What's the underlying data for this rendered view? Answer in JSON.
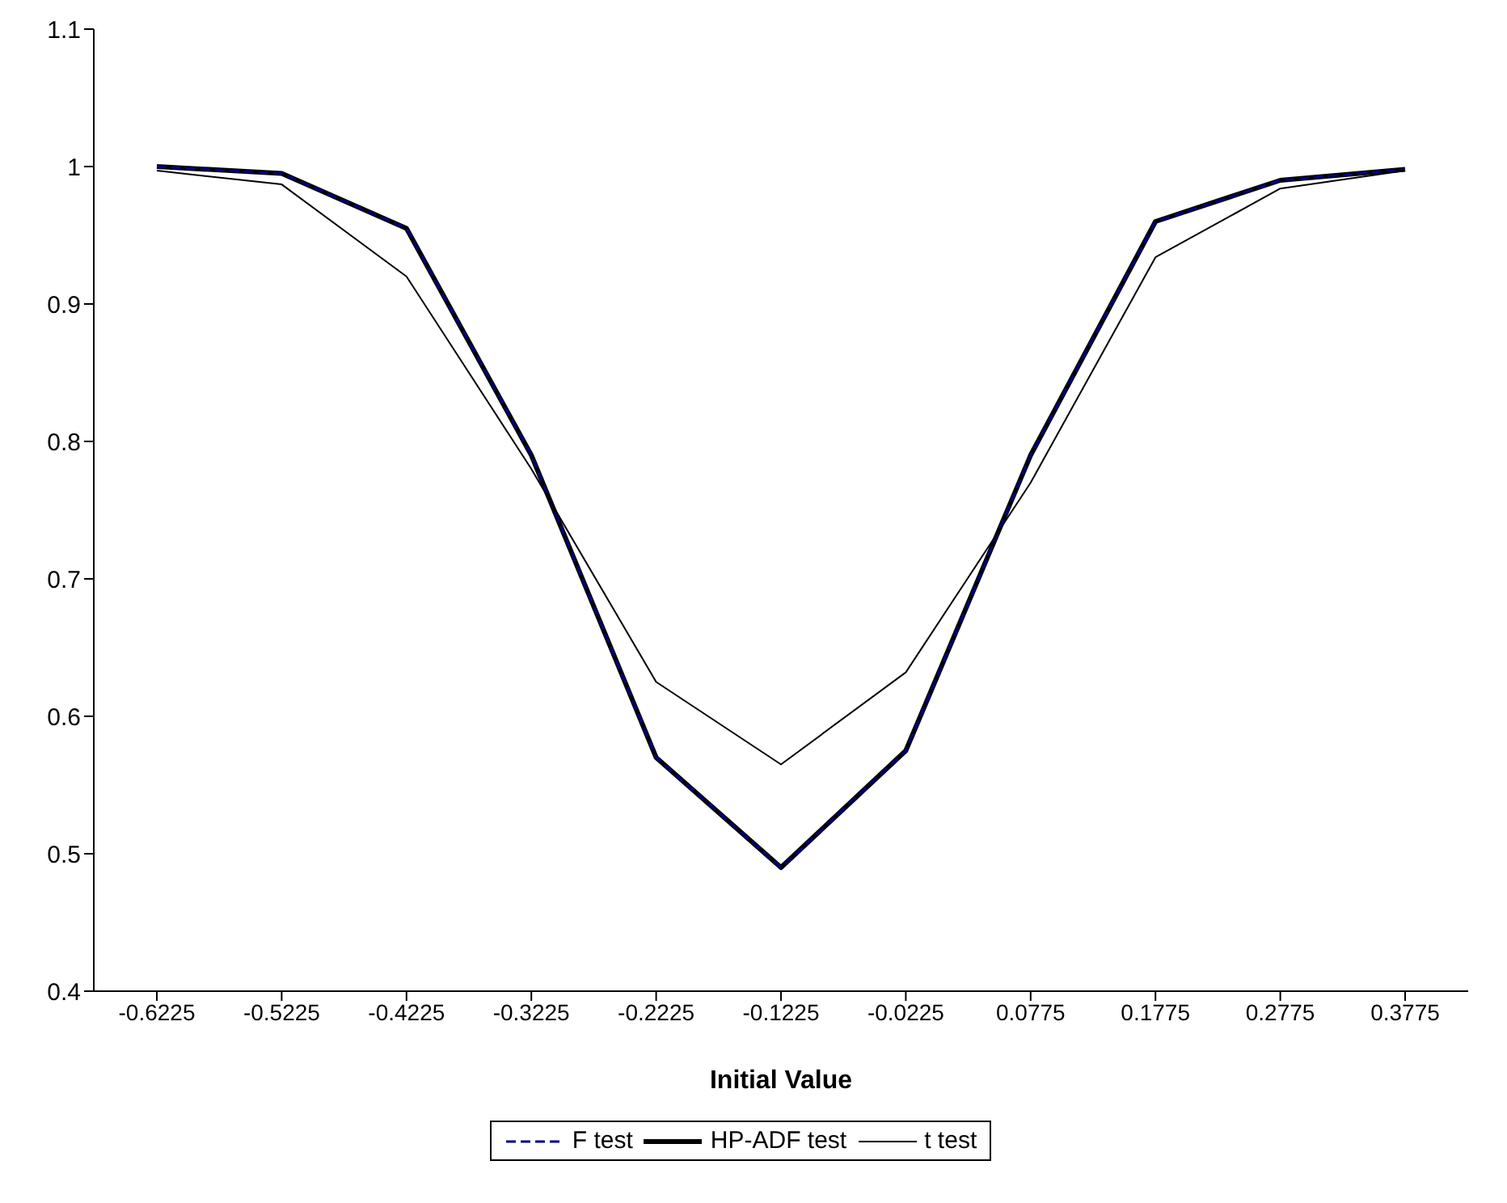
{
  "chart_data": {
    "type": "line",
    "xlabel": "Initial Value",
    "categories": [
      "-0.6225",
      "-0.5225",
      "-0.4225",
      "-0.3225",
      "-0.2225",
      "-0.1225",
      "-0.0225",
      "0.0775",
      "0.1775",
      "0.2775",
      "0.3775"
    ],
    "series": [
      {
        "name": "F test",
        "color": "#000080",
        "line_style": "dashed",
        "values": [
          1.0,
          0.995,
          0.955,
          0.79,
          0.57,
          0.49,
          0.575,
          0.79,
          0.96,
          0.99,
          0.998
        ]
      },
      {
        "name": "HP-ADF test",
        "color": "#000000",
        "line_style": "solid",
        "values": [
          1.0,
          0.995,
          0.955,
          0.79,
          0.57,
          0.49,
          0.575,
          0.79,
          0.96,
          0.99,
          0.998
        ]
      },
      {
        "name": "t test",
        "color": "#000000",
        "line_style": "solid",
        "values": [
          0.997,
          0.987,
          0.92,
          0.78,
          0.625,
          0.565,
          0.632,
          0.77,
          0.934,
          0.984,
          0.997
        ]
      }
    ],
    "ylim": [
      0.4,
      1.1
    ],
    "yticks": [
      0.4,
      0.5,
      0.6,
      0.7,
      0.8,
      0.9,
      1,
      1.1
    ],
    "grid": false,
    "legend": "bottom",
    "marker": "none"
  }
}
